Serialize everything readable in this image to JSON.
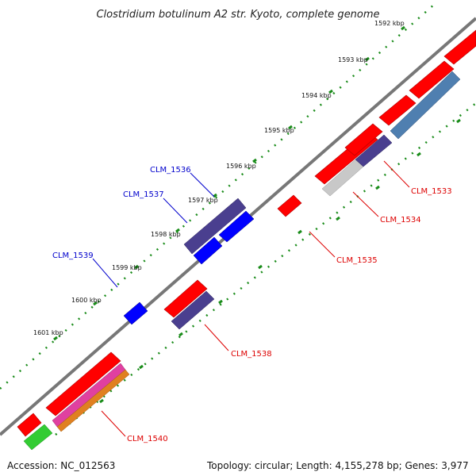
{
  "title": "Clostridium botulinum A2 str. Kyoto, complete genome",
  "scale": {
    "ticks": [
      {
        "label": "1592 kbp"
      },
      {
        "label": "1593 kbp"
      },
      {
        "label": "1594 kbp"
      },
      {
        "label": "1595 kbp"
      },
      {
        "label": "1596 kbp"
      },
      {
        "label": "1597 kbp"
      },
      {
        "label": "1598 kbp"
      },
      {
        "label": "1599 kbp"
      },
      {
        "label": "1600 kbp"
      },
      {
        "label": "1601 kbp"
      }
    ]
  },
  "gene_labels": [
    {
      "id": "CLM_1533",
      "text": "CLM_1533",
      "color": "#dd0000"
    },
    {
      "id": "CLM_1534",
      "text": "CLM_1534",
      "color": "#dd0000"
    },
    {
      "id": "CLM_1535",
      "text": "CLM_1535",
      "color": "#dd0000"
    },
    {
      "id": "CLM_1536",
      "text": "CLM_1536",
      "color": "#0000cc"
    },
    {
      "id": "CLM_1537",
      "text": "CLM_1537",
      "color": "#0000cc"
    },
    {
      "id": "CLM_1538",
      "text": "CLM_1538",
      "color": "#dd0000"
    },
    {
      "id": "CLM_1539",
      "text": "CLM_1539",
      "color": "#0000cc"
    },
    {
      "id": "CLM_1540",
      "text": "CLM_1540",
      "color": "#dd0000"
    }
  ],
  "colors": {
    "forward_cds": "#ff0000",
    "reverse_cds": "#0000ff",
    "cog_purple": "#4a3f8f",
    "cog_steel": "#4f7fb0",
    "cog_gray": "#c8c8c8",
    "cog_green": "#33cc33",
    "cog_pink": "#e040a0",
    "cog_orange": "#e08020",
    "backbone": "#707070",
    "tick_green": "#1a8c1a"
  },
  "footer": {
    "accession": "Accession: NC_012563",
    "summary": "Topology: circular; Length: 4,155,278 bp; Genes: 3,977"
  }
}
